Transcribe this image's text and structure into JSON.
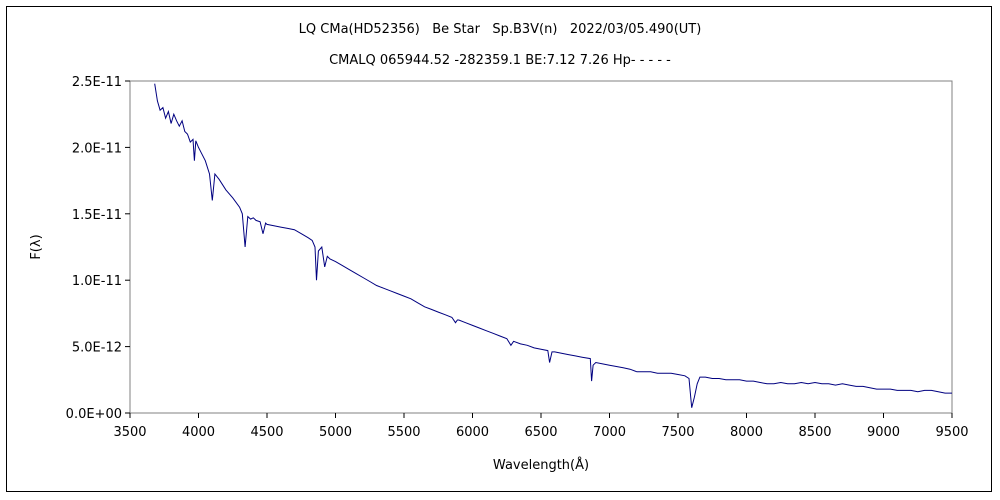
{
  "chart_data": {
    "type": "line",
    "title": "LQ CMa(HD52356)   Be Star   Sp.B3V(n)   2022/03/05.490(UT)",
    "subtitle": "CMALQ 065944.52 -282359.1 BE:7.12 7.26 Hp- - - - -",
    "xlabel": "Wavelength(Å)",
    "ylabel": "F(λ)",
    "xlim": [
      3500,
      9500
    ],
    "ylim": [
      0,
      2.5e-11
    ],
    "x_ticks": [
      3500,
      4000,
      4500,
      5000,
      5500,
      6000,
      6500,
      7000,
      7500,
      8000,
      8500,
      9000,
      9500
    ],
    "x_tick_labels": [
      "3500",
      "4000",
      "4500",
      "5000",
      "5500",
      "6000",
      "6500",
      "7000",
      "7500",
      "8000",
      "8500",
      "9000",
      "9500"
    ],
    "y_ticks": [
      0,
      5e-12,
      1e-11,
      1.5e-11,
      2e-11,
      2.5e-11
    ],
    "y_tick_labels": [
      "0.0E+00",
      "5.0E-12",
      "1.0E-11",
      "1.5E-11",
      "2.0E-11",
      "2.5E-11"
    ],
    "grid": false,
    "legend": "none",
    "line_color": "#000080",
    "series": [
      {
        "x": [
          3680,
          3700,
          3720,
          3740,
          3760,
          3780,
          3800,
          3820,
          3840,
          3860,
          3880,
          3900,
          3920,
          3940,
          3960,
          3970,
          3980,
          4000,
          4020,
          4050,
          4080,
          4101,
          4120,
          4150,
          4200,
          4250,
          4300,
          4320,
          4340,
          4360,
          4380,
          4400,
          4420,
          4450,
          4471,
          4490,
          4500,
          4550,
          4600,
          4650,
          4700,
          4750,
          4800,
          4830,
          4850,
          4861,
          4875,
          4900,
          4921,
          4940,
          4960,
          5000,
          5050,
          5100,
          5150,
          5200,
          5250,
          5300,
          5350,
          5400,
          5450,
          5500,
          5550,
          5600,
          5650,
          5700,
          5750,
          5800,
          5850,
          5876,
          5890,
          5900,
          5950,
          6000,
          6050,
          6100,
          6150,
          6200,
          6250,
          6280,
          6300,
          6350,
          6400,
          6450,
          6500,
          6550,
          6563,
          6580,
          6600,
          6650,
          6700,
          6750,
          6800,
          6860,
          6869,
          6880,
          6900,
          6950,
          7000,
          7050,
          7100,
          7150,
          7200,
          7250,
          7300,
          7350,
          7400,
          7450,
          7500,
          7550,
          7580,
          7600,
          7620,
          7640,
          7660,
          7700,
          7750,
          7800,
          7850,
          7900,
          7950,
          8000,
          8050,
          8100,
          8150,
          8200,
          8250,
          8300,
          8350,
          8400,
          8450,
          8500,
          8550,
          8600,
          8650,
          8700,
          8750,
          8800,
          8850,
          8900,
          8950,
          9000,
          9050,
          9100,
          9150,
          9200,
          9250,
          9300,
          9350,
          9400,
          9450,
          9500
        ],
        "y": [
          2.48e-11,
          2.35e-11,
          2.28e-11,
          2.3e-11,
          2.22e-11,
          2.27e-11,
          2.18e-11,
          2.25e-11,
          2.2e-11,
          2.16e-11,
          2.2e-11,
          2.12e-11,
          2.1e-11,
          2.04e-11,
          2.06e-11,
          1.9e-11,
          2.05e-11,
          2e-11,
          1.96e-11,
          1.9e-11,
          1.8e-11,
          1.6e-11,
          1.8e-11,
          1.76e-11,
          1.68e-11,
          1.62e-11,
          1.55e-11,
          1.5e-11,
          1.25e-11,
          1.48e-11,
          1.46e-11,
          1.47e-11,
          1.45e-11,
          1.44e-11,
          1.35e-11,
          1.43e-11,
          1.42e-11,
          1.41e-11,
          1.4e-11,
          1.39e-11,
          1.38e-11,
          1.35e-11,
          1.32e-11,
          1.3e-11,
          1.25e-11,
          1e-11,
          1.22e-11,
          1.25e-11,
          1.1e-11,
          1.18e-11,
          1.16e-11,
          1.14e-11,
          1.11e-11,
          1.08e-11,
          1.05e-11,
          1.02e-11,
          9.9e-12,
          9.6e-12,
          9.4e-12,
          9.2e-12,
          9e-12,
          8.8e-12,
          8.6e-12,
          8.3e-12,
          8e-12,
          7.8e-12,
          7.6e-12,
          7.4e-12,
          7.2e-12,
          6.8e-12,
          7e-12,
          7e-12,
          6.8e-12,
          6.6e-12,
          6.4e-12,
          6.2e-12,
          6e-12,
          5.8e-12,
          5.6e-12,
          5.1e-12,
          5.4e-12,
          5.2e-12,
          5.1e-12,
          4.9e-12,
          4.8e-12,
          4.7e-12,
          3.8e-12,
          4.6e-12,
          4.6e-12,
          4.5e-12,
          4.4e-12,
          4.3e-12,
          4.2e-12,
          4.1e-12,
          2.4e-12,
          3.6e-12,
          3.8e-12,
          3.7e-12,
          3.6e-12,
          3.5e-12,
          3.4e-12,
          3.3e-12,
          3.1e-12,
          3.1e-12,
          3.1e-12,
          3e-12,
          3e-12,
          3e-12,
          2.9e-12,
          2.8e-12,
          2.6e-12,
          4e-13,
          1.2e-12,
          2.2e-12,
          2.7e-12,
          2.7e-12,
          2.6e-12,
          2.6e-12,
          2.5e-12,
          2.5e-12,
          2.5e-12,
          2.4e-12,
          2.4e-12,
          2.3e-12,
          2.2e-12,
          2.2e-12,
          2.3e-12,
          2.2e-12,
          2.2e-12,
          2.3e-12,
          2.2e-12,
          2.3e-12,
          2.2e-12,
          2.2e-12,
          2.1e-12,
          2.2e-12,
          2.1e-12,
          2e-12,
          2e-12,
          1.9e-12,
          1.8e-12,
          1.8e-12,
          1.8e-12,
          1.7e-12,
          1.7e-12,
          1.7e-12,
          1.6e-12,
          1.7e-12,
          1.7e-12,
          1.6e-12,
          1.5e-12,
          1.5e-12
        ]
      }
    ]
  }
}
